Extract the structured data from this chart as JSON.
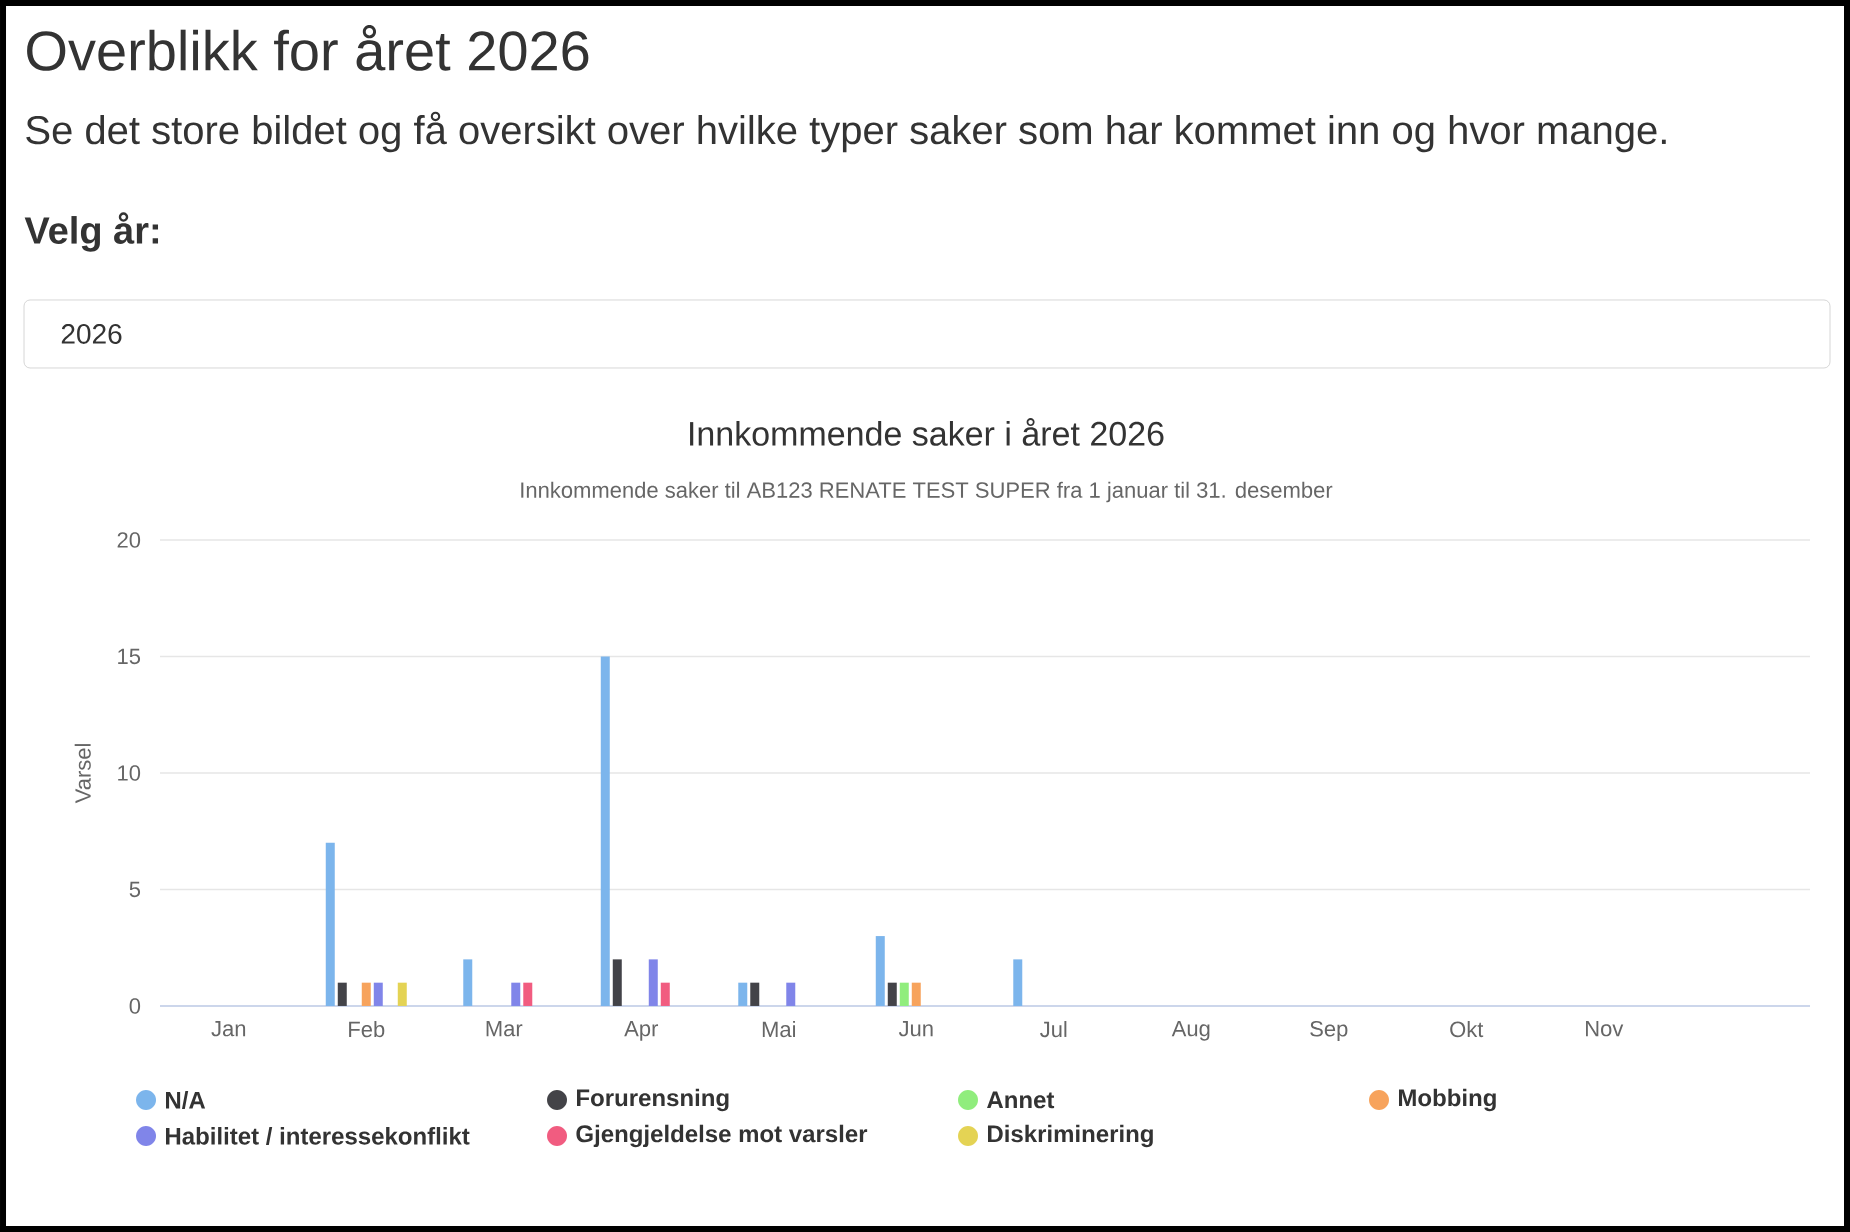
{
  "chart_data": {
    "type": "bar",
    "title": "Innkommende saker i året 2026",
    "subtitle": "Innkommende saker til AB123 RENATE TEST SUPER fra 1 januar til 31. desember",
    "ylabel": "Varsel",
    "annotations": [
      "Overblikk for året 2026",
      "Se det store bildet og få oversikt over hvilke typer saker som har kommet inn og hvor mange.",
      "Velg år:",
      "2026"
    ],
    "categories": [
      "Jan",
      "Feb",
      "Mar",
      "Apr",
      "Mai",
      "Jun",
      "Jul",
      "Aug",
      "Sep",
      "Okt",
      "Nov",
      null
    ],
    "series": [
      {
        "name": "N/A",
        "color": "#7cb5ec",
        "values": [
          0,
          7,
          2,
          15,
          1,
          3,
          2,
          0,
          0,
          0,
          0,
          0
        ]
      },
      {
        "name": "Forurensning",
        "color": "#434348",
        "values": [
          0,
          1,
          0,
          2,
          1,
          1,
          0,
          0,
          0,
          0,
          0,
          0
        ]
      },
      {
        "name": "Annet",
        "color": "#90ed7d",
        "values": [
          0,
          0,
          0,
          0,
          0,
          1,
          0,
          0,
          0,
          0,
          0,
          0
        ]
      },
      {
        "name": "Mobbing",
        "color": "#f7a35c",
        "values": [
          0,
          1,
          0,
          0,
          0,
          1,
          0,
          0,
          0,
          0,
          0,
          0
        ]
      },
      {
        "name": "Habilitet / interessekonflikt",
        "color": "#8085e9",
        "values": [
          0,
          1,
          1,
          2,
          1,
          0,
          0,
          0,
          0,
          0,
          0,
          0
        ]
      },
      {
        "name": "Gjengjeldelse mot varsler",
        "color": "#f15c80",
        "values": [
          0,
          0,
          1,
          1,
          0,
          0,
          0,
          0,
          0,
          0,
          0,
          0
        ]
      },
      {
        "name": "Diskriminering",
        "color": "#e4d354",
        "values": [
          0,
          1,
          0,
          0,
          0,
          0,
          0,
          0,
          0,
          0,
          0,
          0
        ]
      }
    ],
    "ylim": [
      0,
      20
    ],
    "yticks": [
      0,
      5,
      10,
      15,
      20
    ],
    "grid": "y",
    "legend": "bottom"
  }
}
